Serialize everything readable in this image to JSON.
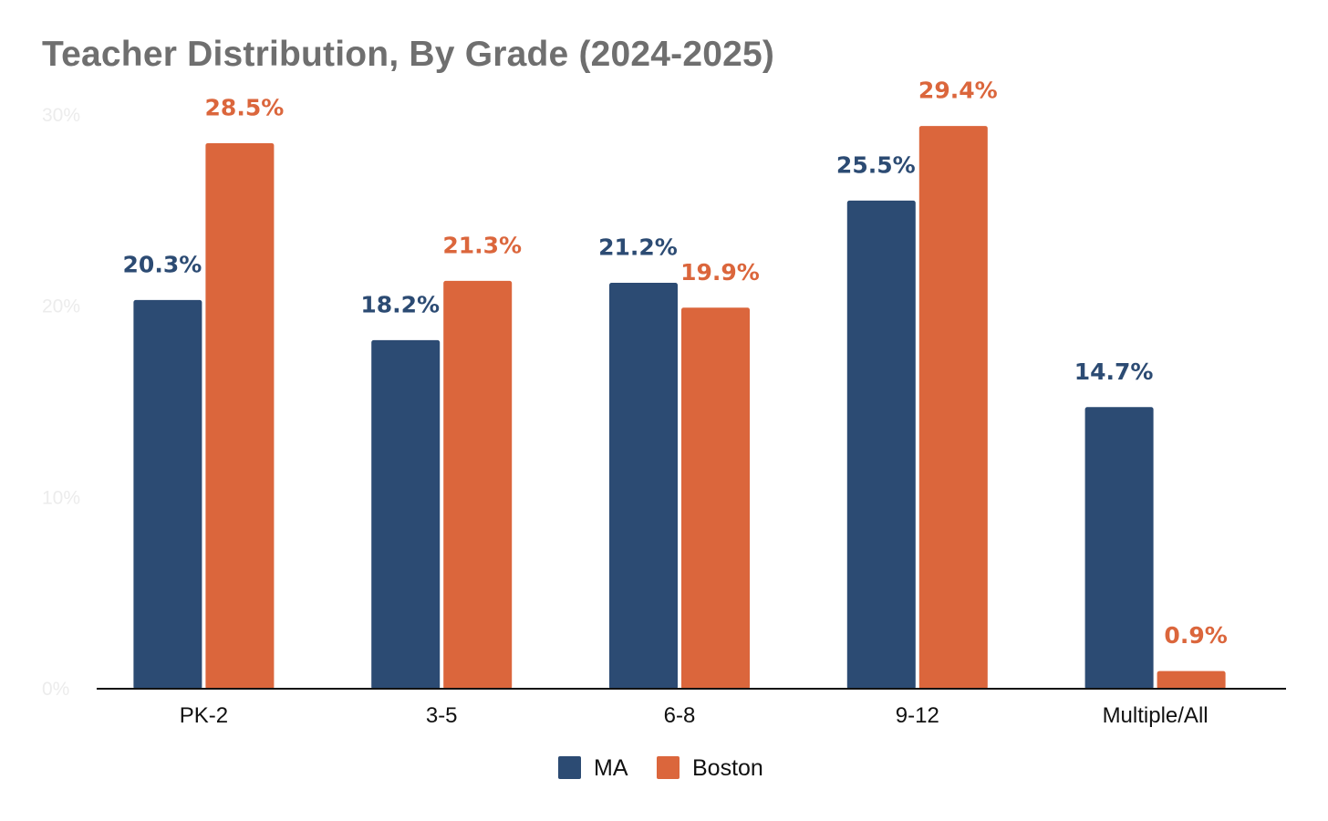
{
  "chart_data": {
    "type": "bar",
    "title": "Teacher Distribution, By Grade (2024-2025)",
    "xlabel": "",
    "ylabel": "",
    "categories": [
      "PK-2",
      "3-5",
      "6-8",
      "9-12",
      "Multiple/All"
    ],
    "series": [
      {
        "name": "MA",
        "color": "#2c4b73",
        "values": [
          20.3,
          18.2,
          21.2,
          25.5,
          14.7
        ]
      },
      {
        "name": "Boston",
        "color": "#db663c",
        "values": [
          28.5,
          21.3,
          19.9,
          29.4,
          0.9
        ]
      }
    ],
    "data_labels": [
      [
        "20.3%",
        "18.2%",
        "21.2%",
        "25.5%",
        "14.7%"
      ],
      [
        "28.5%",
        "21.3%",
        "19.9%",
        "29.4%",
        "0.9%"
      ]
    ],
    "ylim": [
      0,
      30
    ],
    "yticks": [
      0,
      10,
      20,
      30
    ],
    "ytick_labels": [
      "0%",
      "10%",
      "20%",
      "30%"
    ],
    "grid": false,
    "legend_position": "bottom"
  }
}
